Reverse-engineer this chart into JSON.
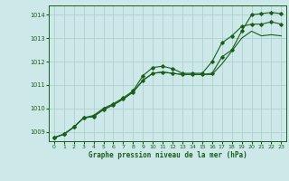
{
  "title": "Graphe pression niveau de la mer (hPa)",
  "bg_color": "#cce8e8",
  "grid_color": "#aacccc",
  "line_color": "#1a5e1a",
  "xlim": [
    -0.5,
    23.5
  ],
  "ylim": [
    1008.6,
    1014.4
  ],
  "yticks": [
    1009,
    1010,
    1011,
    1012,
    1013,
    1014
  ],
  "xticks": [
    0,
    1,
    2,
    3,
    4,
    5,
    6,
    7,
    8,
    9,
    10,
    11,
    12,
    13,
    14,
    15,
    16,
    17,
    18,
    19,
    20,
    21,
    22,
    23
  ],
  "series": [
    [
      1008.75,
      1008.9,
      1009.2,
      1009.6,
      1009.7,
      1010.0,
      1010.2,
      1010.45,
      1010.75,
      1011.4,
      1011.75,
      1011.8,
      1011.7,
      1011.5,
      1011.5,
      1011.5,
      1012.0,
      1012.8,
      1013.1,
      1013.5,
      1013.6,
      1013.6,
      1013.7,
      1013.6
    ],
    [
      1008.75,
      1008.9,
      1009.2,
      1009.6,
      1009.65,
      1009.95,
      1010.15,
      1010.4,
      1010.7,
      1011.2,
      1011.5,
      1011.55,
      1011.5,
      1011.45,
      1011.45,
      1011.45,
      1011.45,
      1011.9,
      1012.45,
      1013.0,
      1013.3,
      1013.1,
      1013.15,
      1013.1
    ],
    [
      1008.75,
      1008.9,
      1009.2,
      1009.6,
      1009.65,
      1009.95,
      1010.15,
      1010.4,
      1010.7,
      1011.2,
      1011.5,
      1011.55,
      1011.5,
      1011.45,
      1011.45,
      1011.45,
      1011.5,
      1012.2,
      1012.5,
      1013.3,
      1014.0,
      1014.05,
      1014.1,
      1014.05
    ]
  ]
}
